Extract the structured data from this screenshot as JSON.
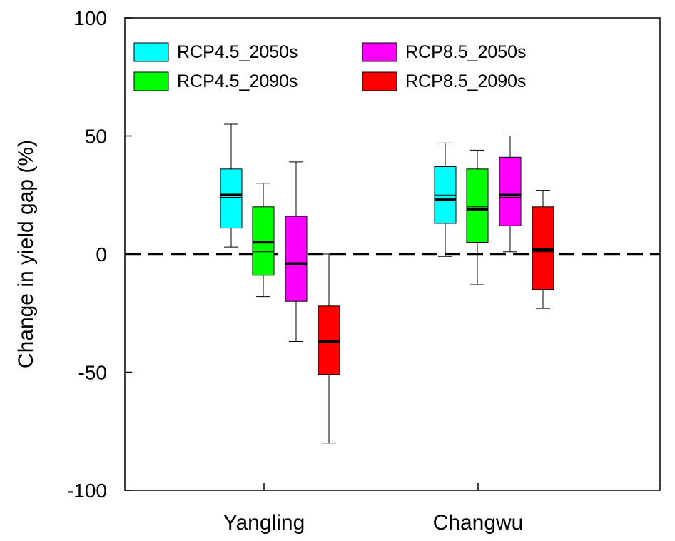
{
  "chart_data": {
    "type": "box",
    "ylabel": "Change in yield gap (%)",
    "xlabel": "",
    "ylim": [
      -100,
      100
    ],
    "yticks": [
      "100",
      "50",
      "0",
      "-50",
      "-100"
    ],
    "reference_line": {
      "y": 0,
      "style": "dashed"
    },
    "categories": [
      "Yangling",
      "Changwu"
    ],
    "series": [
      {
        "name": "RCP4.5_2050s",
        "color": "#00FFFF",
        "boxes": [
          {
            "whisker_low": 3,
            "q1": 11,
            "median": 24,
            "mean": 25,
            "q3": 36,
            "whisker_high": 55
          },
          {
            "whisker_low": -1,
            "q1": 13,
            "median": 25,
            "mean": 23,
            "q3": 37,
            "whisker_high": 47
          }
        ]
      },
      {
        "name": "RCP4.5_2090s",
        "color": "#00FF00",
        "boxes": [
          {
            "whisker_low": -18,
            "q1": -9,
            "median": 1,
            "mean": 5,
            "q3": 20,
            "whisker_high": 30
          },
          {
            "whisker_low": -13,
            "q1": 5,
            "median": 20,
            "mean": 19,
            "q3": 36,
            "whisker_high": 44
          }
        ]
      },
      {
        "name": "RCP8.5_2050s",
        "color": "#FF00FF",
        "boxes": [
          {
            "whisker_low": -37,
            "q1": -20,
            "median": -5,
            "mean": -4,
            "q3": 16,
            "whisker_high": 39
          },
          {
            "whisker_low": 1,
            "q1": 12,
            "median": 24,
            "mean": 25,
            "q3": 41,
            "whisker_high": 50
          }
        ]
      },
      {
        "name": "RCP8.5_2090s",
        "color": "#FF0000",
        "boxes": [
          {
            "whisker_low": -80,
            "q1": -51,
            "median": -37,
            "mean": -37,
            "q3": -22,
            "whisker_high": 0
          },
          {
            "whisker_low": -23,
            "q1": -15,
            "median": 1,
            "mean": 2,
            "q3": 20,
            "whisker_high": 27
          }
        ]
      }
    ],
    "legend": {
      "placement": "top-left",
      "columns": 2
    }
  }
}
